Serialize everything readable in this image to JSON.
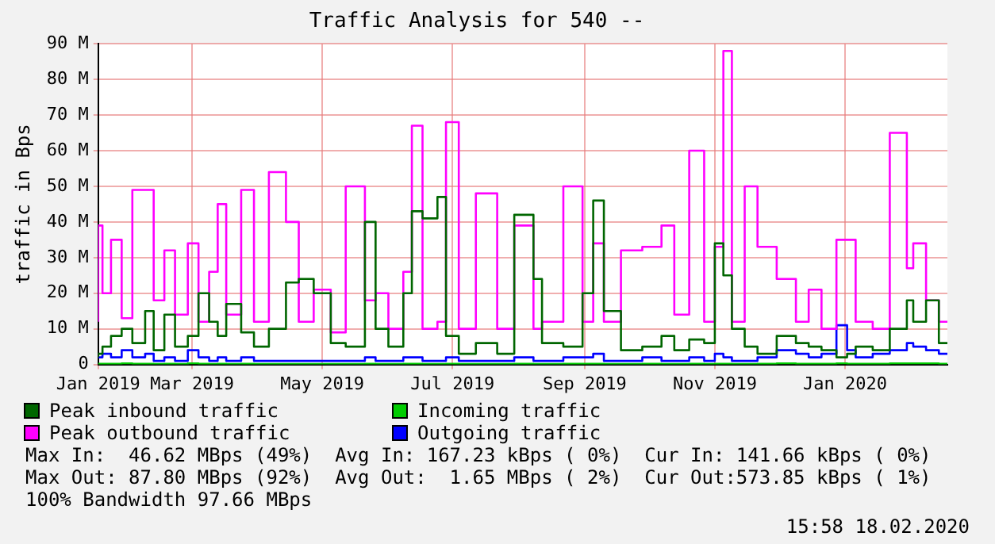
{
  "chart_data": {
    "type": "step",
    "title": "Traffic Analysis for 540 --",
    "ylabel": "traffic in Bps",
    "x": [
      "2019-01-16",
      "2019-01-18",
      "2019-01-22",
      "2019-01-27",
      "2019-02-01",
      "2019-02-07",
      "2019-02-11",
      "2019-02-16",
      "2019-02-21",
      "2019-02-27",
      "2019-03-04",
      "2019-03-09",
      "2019-03-13",
      "2019-03-17",
      "2019-03-24",
      "2019-03-30",
      "2019-04-06",
      "2019-04-14",
      "2019-04-20",
      "2019-04-27",
      "2019-05-05",
      "2019-05-12",
      "2019-05-21",
      "2019-05-26",
      "2019-06-01",
      "2019-06-08",
      "2019-06-12",
      "2019-06-17",
      "2019-06-24",
      "2019-06-28",
      "2019-07-04",
      "2019-07-12",
      "2019-07-22",
      "2019-07-30",
      "2019-08-08",
      "2019-08-12",
      "2019-08-22",
      "2019-08-31",
      "2019-09-05",
      "2019-09-10",
      "2019-09-18",
      "2019-09-28",
      "2019-10-07",
      "2019-10-13",
      "2019-10-20",
      "2019-10-27",
      "2019-11-01",
      "2019-11-05",
      "2019-11-09",
      "2019-11-15",
      "2019-11-21",
      "2019-11-30",
      "2019-12-09",
      "2019-12-15",
      "2019-12-21",
      "2019-12-28",
      "2020-01-02",
      "2020-01-06",
      "2020-01-14",
      "2020-01-22",
      "2020-01-30",
      "2020-02-02",
      "2020-02-08",
      "2020-02-14",
      "2020-02-18"
    ],
    "series": [
      {
        "name": "Peak inbound traffic",
        "color": "#006600",
        "values": [
          2,
          3,
          5,
          8,
          10,
          6,
          15,
          4,
          14,
          5,
          8,
          20,
          12,
          8,
          17,
          9,
          5,
          10,
          23,
          24,
          20,
          6,
          5,
          40,
          10,
          5,
          20,
          43,
          41,
          47,
          8,
          3,
          6,
          3,
          42,
          24,
          6,
          5,
          20,
          46,
          15,
          4,
          5,
          8,
          4,
          7,
          6,
          34,
          25,
          10,
          5,
          3,
          8,
          6,
          5,
          4,
          2,
          3,
          5,
          4,
          10,
          18,
          12,
          18,
          6
        ]
      },
      {
        "name": "Incoming traffic",
        "color": "#00cc00",
        "values": [
          0.2,
          0.2,
          0.2,
          0.2,
          0.3,
          0.2,
          0.2,
          0.1,
          0.2,
          0.1,
          0.3,
          0.2,
          0.1,
          0.2,
          0.1,
          0.2,
          0.1,
          0.1,
          0.1,
          0.1,
          0.1,
          0.1,
          0.1,
          0.2,
          0.1,
          0.1,
          0.2,
          0.2,
          0.1,
          0.1,
          0.2,
          0.1,
          0.1,
          0.1,
          0.2,
          0.1,
          0.1,
          0.2,
          0.2,
          0.2,
          0.1,
          0.1,
          0.2,
          0.1,
          0.1,
          0.2,
          0.1,
          0.2,
          0.2,
          0.1,
          0.1,
          0.2,
          0.3,
          0.2,
          0.2,
          0.2,
          0.3,
          0.2,
          0.2,
          0.2,
          0.3,
          0.3,
          0.3,
          0.3,
          0.2
        ]
      },
      {
        "name": "Peak outbound traffic",
        "color": "#ff00ff",
        "values": [
          12,
          39,
          20,
          35,
          13,
          49,
          49,
          18,
          32,
          14,
          34,
          12,
          26,
          45,
          14,
          49,
          12,
          54,
          40,
          12,
          21,
          9,
          50,
          18,
          20,
          10,
          26,
          67,
          10,
          12,
          68,
          10,
          48,
          10,
          39,
          10,
          12,
          50,
          12,
          34,
          12,
          32,
          33,
          39,
          14,
          60,
          12,
          33,
          88,
          12,
          50,
          33,
          24,
          12,
          21,
          10,
          35,
          35,
          12,
          10,
          65,
          27,
          34,
          18,
          12
        ]
      },
      {
        "name": "Outgoing traffic",
        "color": "#0000ff",
        "values": [
          2,
          2,
          3,
          2,
          4,
          2,
          3,
          1,
          2,
          1,
          4,
          2,
          1,
          2,
          1,
          2,
          1,
          1,
          1,
          1,
          1,
          1,
          1,
          2,
          1,
          1,
          2,
          2,
          1,
          1,
          2,
          1,
          1,
          1,
          2,
          1,
          1,
          2,
          2,
          3,
          1,
          1,
          2,
          1,
          1,
          2,
          1,
          3,
          2,
          1,
          1,
          2,
          4,
          3,
          2,
          3,
          11,
          4,
          2,
          3,
          4,
          6,
          5,
          4,
          3
        ]
      }
    ],
    "xlim": [
      "2019-01-16",
      "2020-02-18"
    ],
    "xticks": [
      {
        "value": "2019-01-16",
        "label": "Jan 2019"
      },
      {
        "value": "2019-03-01",
        "label": "Mar 2019"
      },
      {
        "value": "2019-05-01",
        "label": "May 2019"
      },
      {
        "value": "2019-07-01",
        "label": "Jul 2019"
      },
      {
        "value": "2019-09-01",
        "label": "Sep 2019"
      },
      {
        "value": "2019-11-01",
        "label": "Nov 2019"
      },
      {
        "value": "2020-01-01",
        "label": "Jan 2020"
      }
    ],
    "ylim": [
      0,
      90
    ],
    "yticks": [
      0,
      {
        "value": 10,
        "label": "10 M"
      },
      {
        "value": 20,
        "label": "20 M"
      },
      {
        "value": 30,
        "label": "30 M"
      },
      {
        "value": 40,
        "label": "40 M"
      },
      {
        "value": 50,
        "label": "50 M"
      },
      {
        "value": 60,
        "label": "60 M"
      },
      {
        "value": 70,
        "label": "70 M"
      },
      {
        "value": 80,
        "label": "80 M"
      },
      {
        "value": 90,
        "label": "90 M"
      }
    ],
    "grid": true,
    "legend": "bottom",
    "marker": "none",
    "line_style": "solid",
    "annotations": [
      "Max In:  46.62 MBps (49%)  Avg In: 167.23 kBps ( 0%)  Cur In: 141.66 kBps ( 0%)",
      "Max Out: 87.80 MBps (92%)  Avg Out:  1.65 MBps ( 2%)  Cur Out:573.85 kBps ( 1%)",
      "100% Bandwidth 97.66 MBps",
      "15:58 18.02.2020"
    ]
  }
}
